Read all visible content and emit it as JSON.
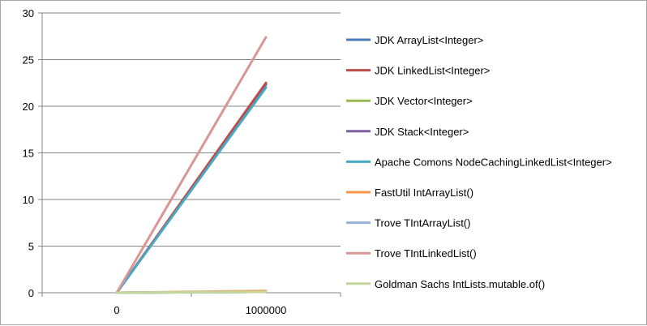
{
  "chart_data": {
    "type": "line",
    "title": "",
    "xlabel": "",
    "ylabel": "",
    "categories": [
      "0",
      "1000000"
    ],
    "ylim": [
      0,
      30
    ],
    "yticks": [
      "0",
      "5",
      "10",
      "15",
      "20",
      "25",
      "30"
    ],
    "grid": "horizontal",
    "legend": "right",
    "series": [
      {
        "name": "JDK ArrayList<Integer>",
        "color": "#4a7ebb",
        "values": [
          0,
          22.3
        ]
      },
      {
        "name": "JDK LinkedList<Integer>",
        "color": "#be4b48",
        "values": [
          0,
          22.5
        ]
      },
      {
        "name": "JDK Vector<Integer>",
        "color": "#98b954",
        "values": [
          0,
          0.1
        ]
      },
      {
        "name": "JDK Stack<Integer>",
        "color": "#7d60a0",
        "values": [
          0,
          0.1
        ]
      },
      {
        "name": "Apache Comons NodeCachingLinkedList<Integer>",
        "color": "#46aac5",
        "values": [
          0,
          22
        ]
      },
      {
        "name": "FastUtil IntArrayList()",
        "color": "#f79646",
        "values": [
          0,
          0.2
        ]
      },
      {
        "name": "Trove TIntArrayList()",
        "color": "#95b3d7",
        "values": [
          0,
          0.1
        ]
      },
      {
        "name": "Trove TIntLinkedList()",
        "color": "#d99694",
        "values": [
          0,
          27.4
        ]
      },
      {
        "name": "Goldman Sachs IntLists.mutable.of()",
        "color": "#c3d69b",
        "values": [
          0,
          0.1
        ]
      }
    ]
  }
}
